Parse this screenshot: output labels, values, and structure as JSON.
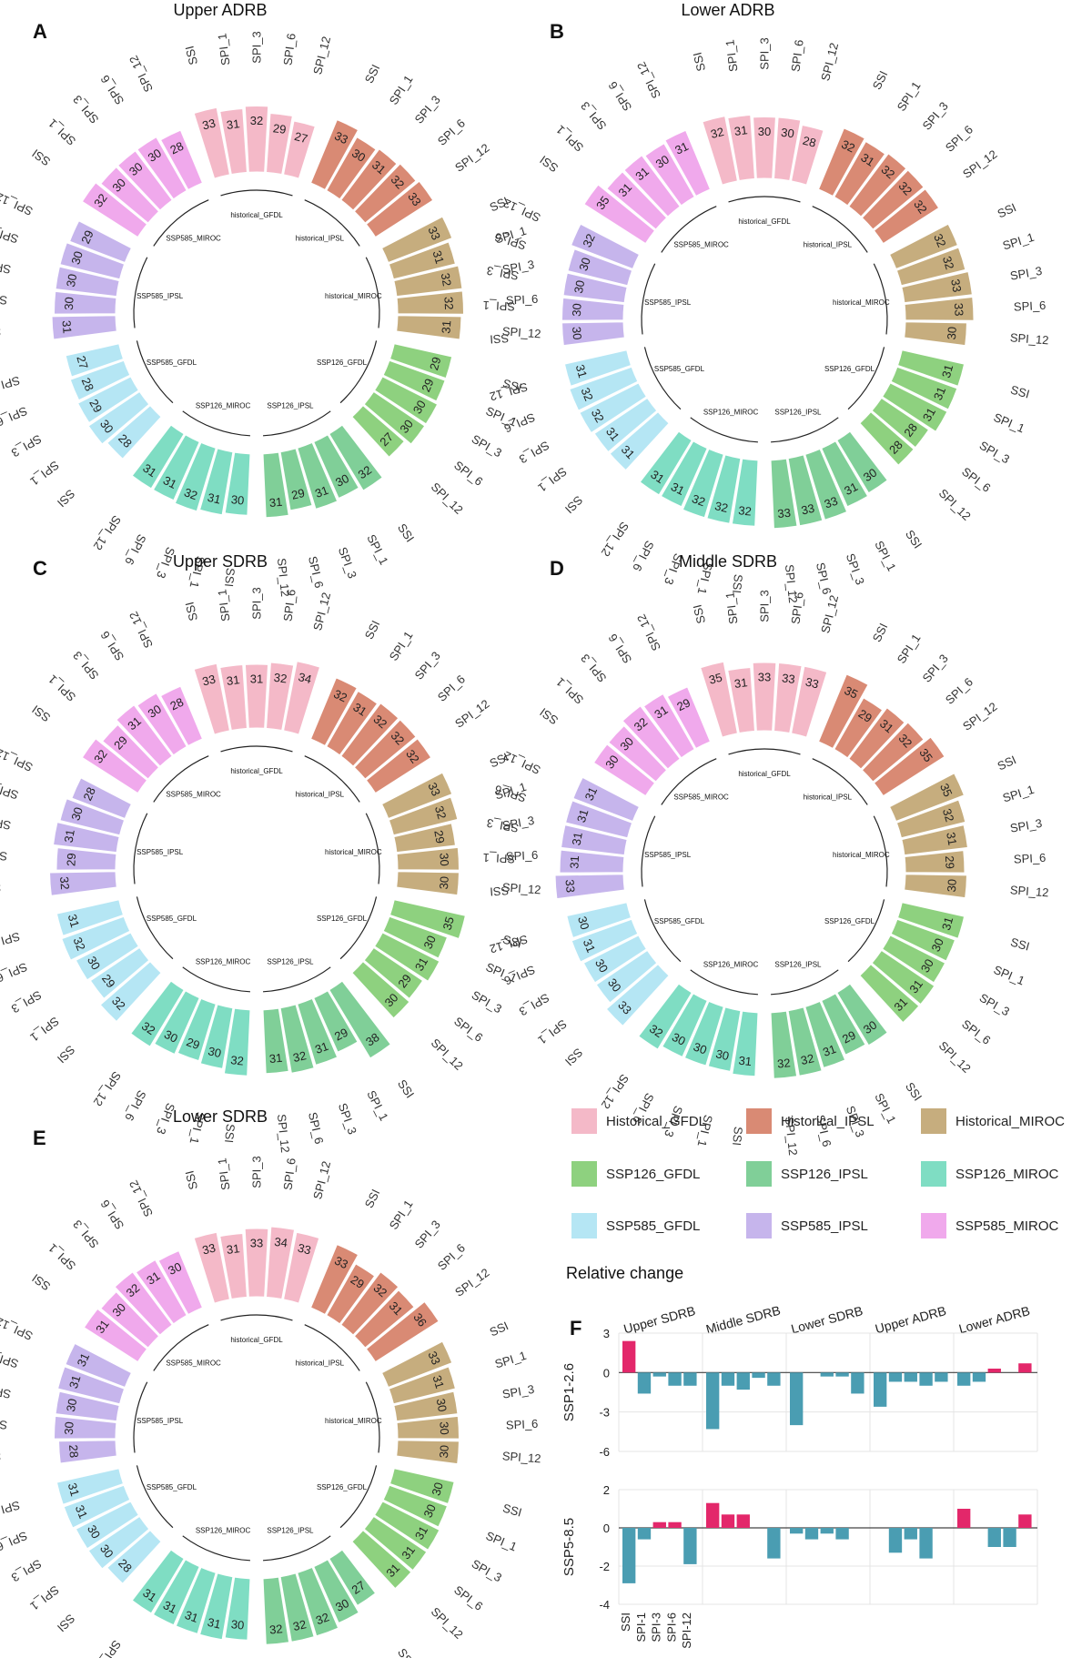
{
  "figure_title": "Relative change",
  "chart_data": [
    {
      "type": "circular-bar",
      "panel": "A",
      "title": "Upper ADRB",
      "indices": [
        "SSI",
        "SPI_1",
        "SPI_3",
        "SPI_6",
        "SPI_12"
      ],
      "groups": [
        "historical_GFDL",
        "historical_IPSL",
        "historical_MIROC",
        "SSP126_GFDL",
        "SSP126_IPSL",
        "SSP126_MIROC",
        "SSP585_GFDL",
        "SSP585_IPSL",
        "SSP585_MIROC"
      ],
      "values": [
        [
          33,
          31,
          32,
          29,
          27
        ],
        [
          33,
          30,
          31,
          32,
          33
        ],
        [
          33,
          31,
          32,
          32,
          31
        ],
        [
          29,
          29,
          30,
          30,
          27
        ],
        [
          32,
          30,
          31,
          29,
          31
        ],
        [
          30,
          31,
          32,
          31,
          31
        ],
        [
          28,
          30,
          29,
          28,
          27
        ],
        [
          31,
          30,
          30,
          30,
          29
        ],
        [
          32,
          30,
          30,
          30,
          28
        ]
      ]
    },
    {
      "type": "circular-bar",
      "panel": "B",
      "title": "Lower ADRB",
      "indices": [
        "SSI",
        "SPI_1",
        "SPI_3",
        "SPI_6",
        "SPI_12"
      ],
      "groups": [
        "historical_GFDL",
        "historical_IPSL",
        "historical_MIROC",
        "SSP126_GFDL",
        "SSP126_IPSL",
        "SSP126_MIROC",
        "SSP585_GFDL",
        "SSP585_IPSL",
        "SSP585_MIROC"
      ],
      "values": [
        [
          32,
          31,
          30,
          30,
          28
        ],
        [
          32,
          31,
          32,
          32,
          32
        ],
        [
          32,
          32,
          33,
          33,
          30
        ],
        [
          31,
          31,
          31,
          28,
          28
        ],
        [
          30,
          31,
          33,
          33,
          33
        ],
        [
          32,
          32,
          32,
          31,
          31
        ],
        [
          31,
          31,
          32,
          32,
          31
        ],
        [
          30,
          30,
          30,
          30,
          32
        ],
        [
          35,
          31,
          31,
          30,
          31
        ]
      ]
    },
    {
      "type": "circular-bar",
      "panel": "C",
      "title": "Upper SDRB",
      "indices": [
        "SSI",
        "SPI_1",
        "SPI_3",
        "SPI_6",
        "SPI_12"
      ],
      "groups": [
        "historical_GFDL",
        "historical_IPSL",
        "historical_MIROC",
        "SSP126_GFDL",
        "SSP126_IPSL",
        "SSP126_MIROC",
        "SSP585_GFDL",
        "SSP585_IPSL",
        "SSP585_MIROC"
      ],
      "values": [
        [
          33,
          31,
          31,
          32,
          34
        ],
        [
          32,
          31,
          32,
          32,
          32
        ],
        [
          33,
          32,
          29,
          30,
          30
        ],
        [
          35,
          30,
          31,
          29,
          30
        ],
        [
          38,
          29,
          31,
          32,
          31
        ],
        [
          32,
          30,
          29,
          30,
          32
        ],
        [
          32,
          29,
          30,
          32,
          31
        ],
        [
          32,
          29,
          31,
          30,
          28
        ],
        [
          32,
          29,
          31,
          30,
          28
        ]
      ]
    },
    {
      "type": "circular-bar",
      "panel": "D",
      "title": "Middle SDRB",
      "indices": [
        "SSI",
        "SPI_1",
        "SPI_3",
        "SPI_6",
        "SPI_12"
      ],
      "groups": [
        "historical_GFDL",
        "historical_IPSL",
        "historical_MIROC",
        "SSP126_GFDL",
        "SSP126_IPSL",
        "SSP126_MIROC",
        "SSP585_GFDL",
        "SSP585_IPSL",
        "SSP585_MIROC"
      ],
      "values": [
        [
          35,
          31,
          33,
          33,
          33
        ],
        [
          35,
          29,
          31,
          32,
          35
        ],
        [
          35,
          32,
          31,
          29,
          30
        ],
        [
          31,
          30,
          30,
          31,
          31
        ],
        [
          30,
          29,
          31,
          32,
          32
        ],
        [
          31,
          30,
          30,
          30,
          32
        ],
        [
          33,
          30,
          30,
          31,
          30
        ],
        [
          33,
          31,
          31,
          31,
          31
        ],
        [
          30,
          30,
          32,
          31,
          29
        ]
      ]
    },
    {
      "type": "circular-bar",
      "panel": "E",
      "title": "Lower SDRB",
      "indices": [
        "SSI",
        "SPI_1",
        "SPI_3",
        "SPI_6",
        "SPI_12"
      ],
      "groups": [
        "historical_GFDL",
        "historical_IPSL",
        "historical_MIROC",
        "SSP126_GFDL",
        "SSP126_IPSL",
        "SSP126_MIROC",
        "SSP585_GFDL",
        "SSP585_IPSL",
        "SSP585_MIROC"
      ],
      "values": [
        [
          33,
          31,
          33,
          34,
          33
        ],
        [
          33,
          29,
          32,
          31,
          36
        ],
        [
          33,
          31,
          30,
          30,
          30
        ],
        [
          30,
          30,
          31,
          31,
          31
        ],
        [
          27,
          30,
          32,
          32,
          32
        ],
        [
          30,
          31,
          31,
          31,
          31
        ],
        [
          28,
          30,
          30,
          31,
          31
        ],
        [
          28,
          30,
          30,
          31,
          31
        ],
        [
          31,
          30,
          32,
          31,
          30
        ]
      ]
    },
    {
      "type": "bar",
      "panel": "F",
      "title": "Relative change",
      "regions": [
        "Upper SDRB",
        "Middle SDRB",
        "Lower SDRB",
        "Upper ADRB",
        "Lower ADRB"
      ],
      "categories": [
        "SSI",
        "SPI-1",
        "SPI-3",
        "SPI-6",
        "SPI-12"
      ],
      "series": [
        {
          "name": "SSP1-2.6",
          "ylim": [
            -6,
            3
          ],
          "yticks": [
            3,
            0,
            -3,
            -6
          ],
          "values": [
            [
              2.4,
              -1.6,
              -0.3,
              -1.0,
              -1.0
            ],
            [
              -4.3,
              -1.0,
              -1.3,
              -0.4,
              -1.0
            ],
            [
              -4.0,
              0.0,
              -0.3,
              -0.3,
              -1.6
            ],
            [
              -2.6,
              -0.7,
              -0.7,
              -1.0,
              -0.7
            ],
            [
              -1.0,
              -0.7,
              0.3,
              0.0,
              0.7
            ]
          ]
        },
        {
          "name": "SSP5-8.5",
          "ylim": [
            -4,
            2
          ],
          "yticks": [
            2,
            0,
            -2,
            -4
          ],
          "values": [
            [
              -2.9,
              -0.6,
              0.3,
              0.3,
              -1.9
            ],
            [
              1.3,
              0.7,
              0.7,
              0.0,
              -1.6
            ],
            [
              -0.3,
              -0.6,
              -0.3,
              -0.6,
              0.0
            ],
            [
              0.0,
              -1.3,
              -0.6,
              -1.6,
              0.0
            ],
            [
              1.0,
              0.0,
              -1.0,
              -1.0,
              0.7
            ]
          ]
        }
      ]
    }
  ],
  "legend": [
    {
      "label": "Historical_GFDL",
      "color": "#f4b9c8"
    },
    {
      "label": "Historical_IPSL",
      "color": "#d98a74"
    },
    {
      "label": "Historical_MIROC",
      "color": "#c6ad7e"
    },
    {
      "label": "SSP126_GFDL",
      "color": "#8ed17f"
    },
    {
      "label": "SSP126_IPSL",
      "color": "#80cf98"
    },
    {
      "label": "SSP126_MIROC",
      "color": "#7fddc3"
    },
    {
      "label": "SSP585_GFDL",
      "color": "#b5e6f4"
    },
    {
      "label": "SSP585_IPSL",
      "color": "#c6b5ec"
    },
    {
      "label": "SSP585_MIROC",
      "color": "#f0a9ec"
    }
  ],
  "colors": {
    "positive": "#e3276a",
    "negative": "#4a9db2",
    "grid": "#e4e4e4"
  }
}
